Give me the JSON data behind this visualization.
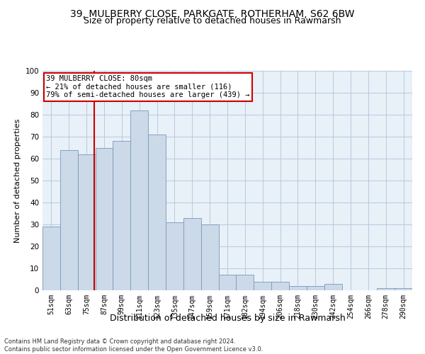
{
  "title": "39, MULBERRY CLOSE, PARKGATE, ROTHERHAM, S62 6BW",
  "subtitle": "Size of property relative to detached houses in Rawmarsh",
  "xlabel": "Distribution of detached houses by size in Rawmarsh",
  "ylabel": "Number of detached properties",
  "categories": [
    "51sqm",
    "63sqm",
    "75sqm",
    "87sqm",
    "99sqm",
    "111sqm",
    "123sqm",
    "135sqm",
    "147sqm",
    "159sqm",
    "171sqm",
    "182sqm",
    "194sqm",
    "206sqm",
    "218sqm",
    "230sqm",
    "242sqm",
    "254sqm",
    "266sqm",
    "278sqm",
    "290sqm"
  ],
  "values": [
    29,
    64,
    62,
    65,
    68,
    82,
    71,
    31,
    33,
    30,
    7,
    7,
    4,
    4,
    2,
    2,
    3,
    0,
    0,
    1,
    1
  ],
  "bar_color": "#ccd9e8",
  "bar_edge_color": "#7799bb",
  "annotation_text": "39 MULBERRY CLOSE: 80sqm\n← 21% of detached houses are smaller (116)\n79% of semi-detached houses are larger (439) →",
  "annotation_box_color": "#ffffff",
  "annotation_box_edge_color": "#cc0000",
  "annotation_text_color": "#000000",
  "red_line_color": "#cc0000",
  "ylim": [
    0,
    100
  ],
  "yticks": [
    0,
    10,
    20,
    30,
    40,
    50,
    60,
    70,
    80,
    90,
    100
  ],
  "grid_color": "#b0c4d8",
  "background_color": "#e8f0f8",
  "footer_line1": "Contains HM Land Registry data © Crown copyright and database right 2024.",
  "footer_line2": "Contains public sector information licensed under the Open Government Licence v3.0.",
  "title_fontsize": 10,
  "subtitle_fontsize": 9,
  "tick_fontsize": 7,
  "ylabel_fontsize": 8,
  "xlabel_fontsize": 9,
  "annotation_fontsize": 7.5,
  "footer_fontsize": 6,
  "red_line_bar_index": 2.42
}
